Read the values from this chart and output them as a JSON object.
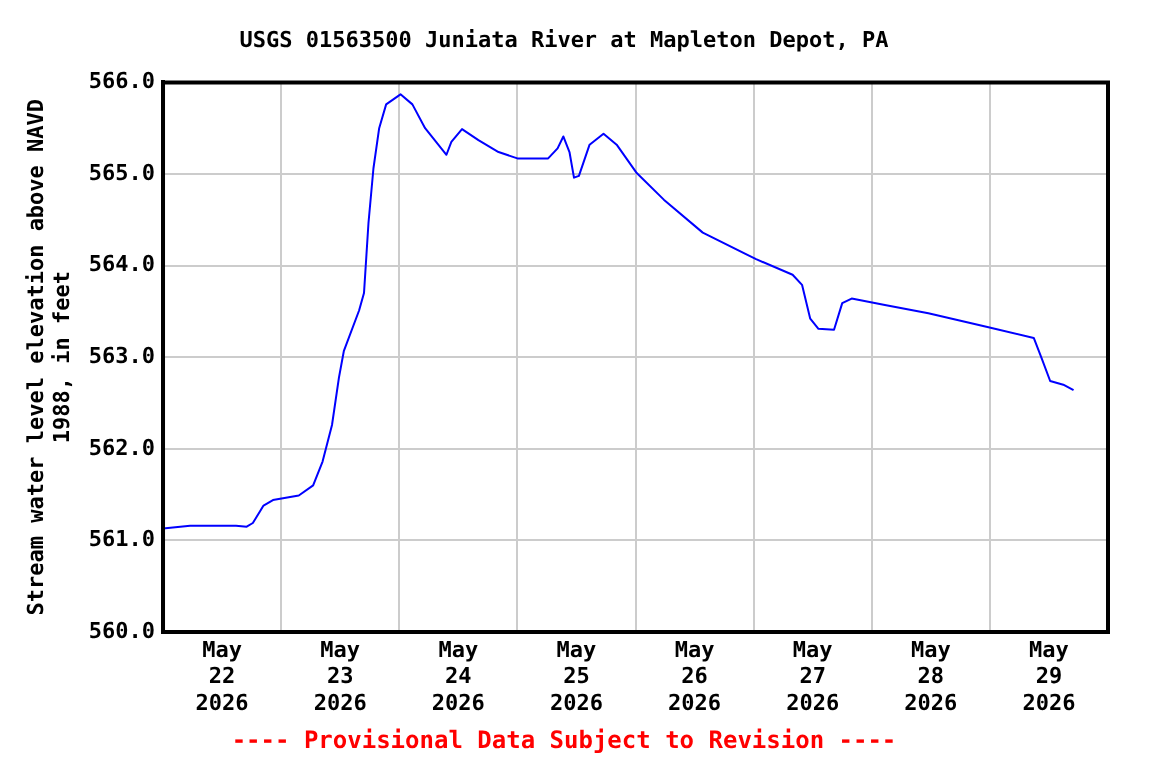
{
  "chart_data": {
    "type": "line",
    "title": "USGS 01563500 Juniata River at Mapleton Depot, PA",
    "ylabel": "Stream water level elevation above NAVD 1988, in feet",
    "annotations": [
      "---- Provisional Data Subject to Revision ----"
    ],
    "x": [
      "2026-05-22T00:00",
      "2026-05-22T05:30",
      "2026-05-22T14:50",
      "2026-05-22T17:00",
      "2026-05-22T18:15",
      "2026-05-22T20:25",
      "2026-05-22T22:20",
      "2026-05-23T03:35",
      "2026-05-23T06:30",
      "2026-05-23T08:25",
      "2026-05-23T10:20",
      "2026-05-23T11:45",
      "2026-05-23T12:45",
      "2026-05-23T15:50",
      "2026-05-23T16:50",
      "2026-05-23T17:45",
      "2026-05-23T18:45",
      "2026-05-23T19:55",
      "2026-05-23T21:20",
      "2026-05-24T00:15",
      "2026-05-24T02:40",
      "2026-05-24T05:15",
      "2026-05-24T09:35",
      "2026-05-24T10:35",
      "2026-05-24T12:45",
      "2026-05-24T16:05",
      "2026-05-24T20:10",
      "2026-05-25T00:00",
      "2026-05-25T06:15",
      "2026-05-25T08:10",
      "2026-05-25T09:20",
      "2026-05-25T10:35",
      "2026-05-25T11:30",
      "2026-05-25T12:30",
      "2026-05-25T14:40",
      "2026-05-25T17:30",
      "2026-05-25T20:10",
      "2026-05-26T00:15",
      "2026-05-26T05:45",
      "2026-05-26T13:40",
      "2026-05-27T00:30",
      "2026-05-27T07:55",
      "2026-05-27T09:50",
      "2026-05-27T11:30",
      "2026-05-27T13:10",
      "2026-05-27T16:20",
      "2026-05-27T18:00",
      "2026-05-27T19:55",
      "2026-05-28T02:40",
      "2026-05-28T11:30",
      "2026-05-28T23:30",
      "2026-05-29T08:55",
      "2026-05-29T10:35",
      "2026-05-29T12:15",
      "2026-05-29T14:55",
      "2026-05-29T17:00"
    ],
    "series": [
      {
        "color": "#0000ff",
        "values": [
          561.13,
          561.16,
          561.16,
          561.15,
          561.19,
          561.38,
          561.44,
          561.49,
          561.6,
          561.86,
          562.26,
          562.78,
          563.07,
          563.51,
          563.7,
          564.47,
          565.06,
          565.5,
          565.76,
          565.87,
          565.76,
          565.5,
          565.21,
          565.35,
          565.49,
          565.37,
          565.24,
          565.17,
          565.17,
          565.28,
          565.41,
          565.24,
          564.96,
          564.98,
          565.32,
          565.44,
          565.32,
          565.01,
          564.72,
          564.36,
          564.07,
          563.9,
          563.79,
          563.42,
          563.31,
          563.3,
          563.59,
          563.64,
          563.57,
          563.48,
          563.33,
          563.21,
          562.98,
          562.74,
          562.7,
          562.64
        ]
      }
    ],
    "xlim": [
      "2026-05-22T00:00",
      "2026-05-30T00:00"
    ],
    "xticks": [
      {
        "value": "2026-05-22T12:00",
        "label": "May 22 2026"
      },
      {
        "value": "2026-05-23",
        "label": null
      },
      {
        "value": "2026-05-23T12:00",
        "label": "May 23 2026"
      },
      {
        "value": "2026-05-24",
        "label": null
      },
      {
        "value": "2026-05-24T12:00",
        "label": "May 24 2026"
      },
      {
        "value": "2026-05-25",
        "label": null
      },
      {
        "value": "2026-05-25T12:00",
        "label": "May 25 2026"
      },
      {
        "value": "2026-05-26",
        "label": null
      },
      {
        "value": "2026-05-26T12:00",
        "label": "May 26 2026"
      },
      {
        "value": "2026-05-27",
        "label": null
      },
      {
        "value": "2026-05-27T12:00",
        "label": "May 27 2026"
      },
      {
        "value": "2026-05-28",
        "label": null
      },
      {
        "value": "2026-05-28T12:00",
        "label": "May 28 2026"
      },
      {
        "value": "2026-05-29",
        "label": null
      },
      {
        "value": "2026-05-29T12:00",
        "label": "May 29 2026"
      }
    ],
    "ylim": [
      560,
      566
    ],
    "yticks": [
      {
        "value": 560,
        "label": "560.0"
      },
      {
        "value": 561,
        "label": "561.0"
      },
      {
        "value": 562,
        "label": "562.0"
      },
      {
        "value": 563,
        "label": "563.0"
      },
      {
        "value": 564,
        "label": "564.0"
      },
      {
        "value": 565,
        "label": "565.0"
      },
      {
        "value": 566,
        "label": "566.0"
      }
    ],
    "grid": true,
    "legend": false,
    "marker": "none",
    "line_style": "solid"
  }
}
